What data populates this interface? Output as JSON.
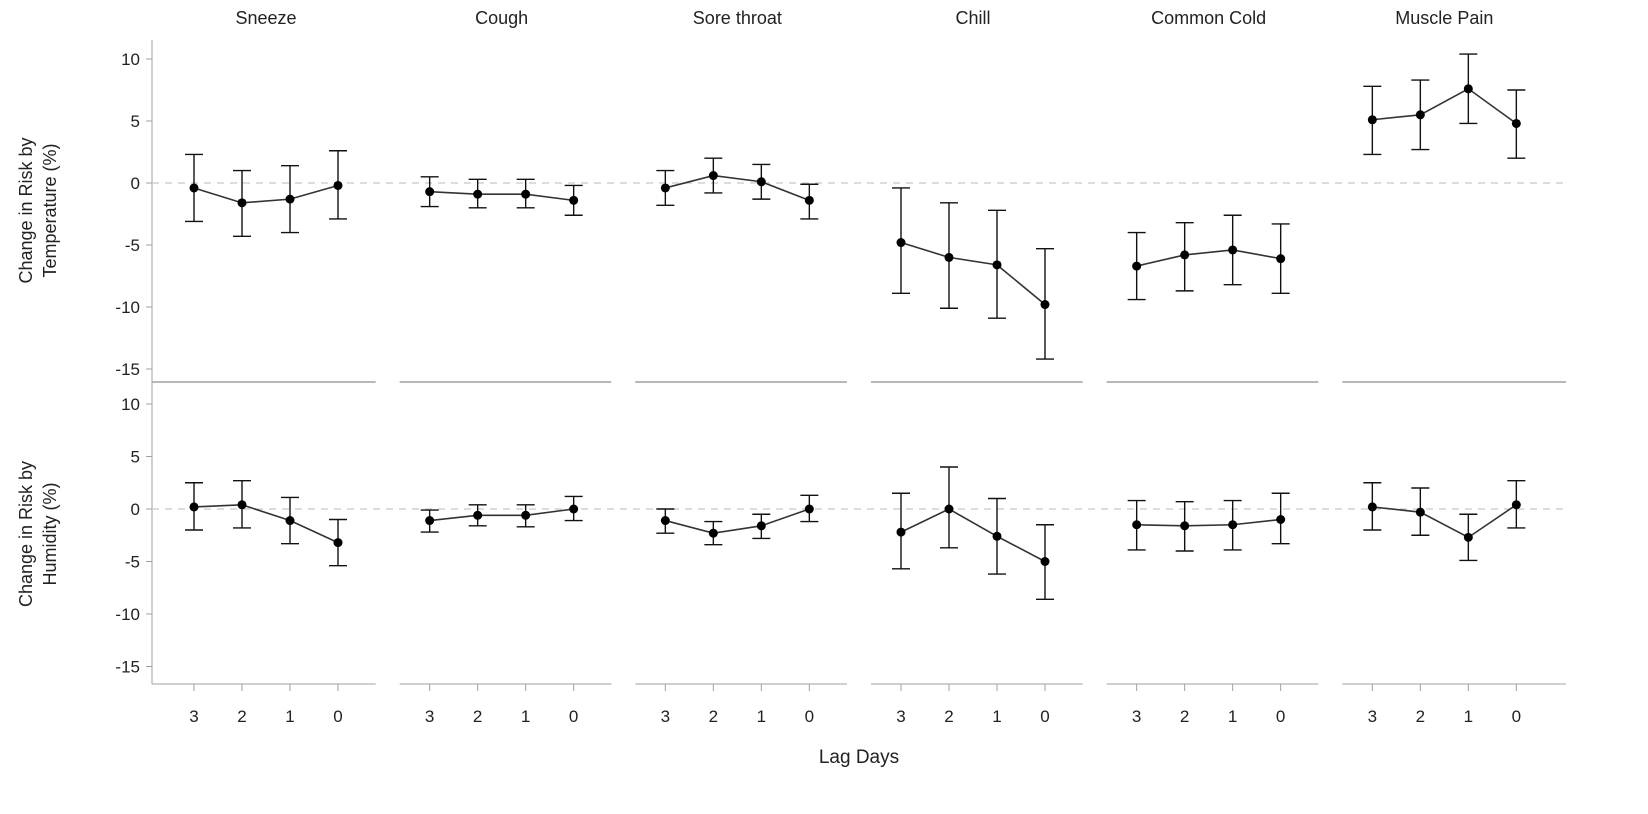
{
  "chart_data": {
    "type": "line",
    "xlabel": "Lag Days",
    "x_categories": [
      "3",
      "2",
      "1",
      "0"
    ],
    "ylim": [
      -16,
      12
    ],
    "yticks": [
      10,
      5,
      0,
      -5,
      -10,
      -15
    ],
    "reference_line": 0,
    "colors": {
      "points": "#000000",
      "line": "#333333",
      "reference": "#c8c8c8",
      "axis": "#a0a0a0"
    },
    "panels": [
      "Sneeze",
      "Cough",
      "Sore throat",
      "Chill",
      "Common Cold",
      "Muscle Pain"
    ],
    "rows": [
      {
        "ylabel": [
          "Change in Risk by",
          "Temperature (%)"
        ],
        "series": [
          {
            "panel": "Sneeze",
            "estimate": [
              -0.4,
              -1.6,
              -1.3,
              -0.2
            ],
            "lower": [
              -3.1,
              -4.3,
              -4.0,
              -2.9
            ],
            "upper": [
              2.3,
              1.0,
              1.4,
              2.6
            ]
          },
          {
            "panel": "Cough",
            "estimate": [
              -0.7,
              -0.9,
              -0.9,
              -1.4
            ],
            "lower": [
              -1.9,
              -2.0,
              -2.0,
              -2.6
            ],
            "upper": [
              0.5,
              0.3,
              0.3,
              -0.2
            ]
          },
          {
            "panel": "Sore throat",
            "estimate": [
              -0.4,
              0.6,
              0.1,
              -1.4
            ],
            "lower": [
              -1.8,
              -0.8,
              -1.3,
              -2.9
            ],
            "upper": [
              1.0,
              2.0,
              1.5,
              -0.1
            ]
          },
          {
            "panel": "Chill",
            "estimate": [
              -4.8,
              -6.0,
              -6.6,
              -9.8
            ],
            "lower": [
              -8.9,
              -10.1,
              -10.9,
              -14.2
            ],
            "upper": [
              -0.4,
              -1.6,
              -2.2,
              -5.3
            ]
          },
          {
            "panel": "Common Cold",
            "estimate": [
              -6.7,
              -5.8,
              -5.4,
              -6.1
            ],
            "lower": [
              -9.4,
              -8.7,
              -8.2,
              -8.9
            ],
            "upper": [
              -4.0,
              -3.2,
              -2.6,
              -3.3
            ]
          },
          {
            "panel": "Muscle Pain",
            "estimate": [
              5.1,
              5.5,
              7.6,
              4.8
            ],
            "lower": [
              2.3,
              2.7,
              4.8,
              2.0
            ],
            "upper": [
              7.8,
              8.3,
              10.4,
              7.5
            ]
          }
        ]
      },
      {
        "ylabel": [
          "Change in Risk by",
          "Humidity (%)"
        ],
        "series": [
          {
            "panel": "Sneeze",
            "estimate": [
              0.2,
              0.4,
              -1.1,
              -3.2
            ],
            "lower": [
              -2.0,
              -1.8,
              -3.3,
              -5.4
            ],
            "upper": [
              2.5,
              2.7,
              1.1,
              -1.0
            ]
          },
          {
            "panel": "Cough",
            "estimate": [
              -1.1,
              -0.6,
              -0.6,
              0.0
            ],
            "lower": [
              -2.2,
              -1.6,
              -1.7,
              -1.1
            ],
            "upper": [
              -0.1,
              0.4,
              0.4,
              1.2
            ]
          },
          {
            "panel": "Sore throat",
            "estimate": [
              -1.1,
              -2.3,
              -1.6,
              0.0
            ],
            "lower": [
              -2.3,
              -3.4,
              -2.8,
              -1.2
            ],
            "upper": [
              0.0,
              -1.2,
              -0.5,
              1.3
            ]
          },
          {
            "panel": "Chill",
            "estimate": [
              -2.2,
              0.0,
              -2.6,
              -5.0
            ],
            "lower": [
              -5.7,
              -3.7,
              -6.2,
              -8.6
            ],
            "upper": [
              1.5,
              4.0,
              1.0,
              -1.5
            ]
          },
          {
            "panel": "Common Cold",
            "estimate": [
              -1.5,
              -1.6,
              -1.5,
              -1.0
            ],
            "lower": [
              -3.9,
              -4.0,
              -3.9,
              -3.3
            ],
            "upper": [
              0.8,
              0.7,
              0.8,
              1.5
            ]
          },
          {
            "panel": "Muscle Pain",
            "estimate": [
              0.2,
              -0.3,
              -2.7,
              0.4
            ],
            "lower": [
              -2.0,
              -2.5,
              -4.9,
              -1.8
            ],
            "upper": [
              2.5,
              2.0,
              -0.5,
              2.7
            ]
          }
        ]
      }
    ]
  }
}
